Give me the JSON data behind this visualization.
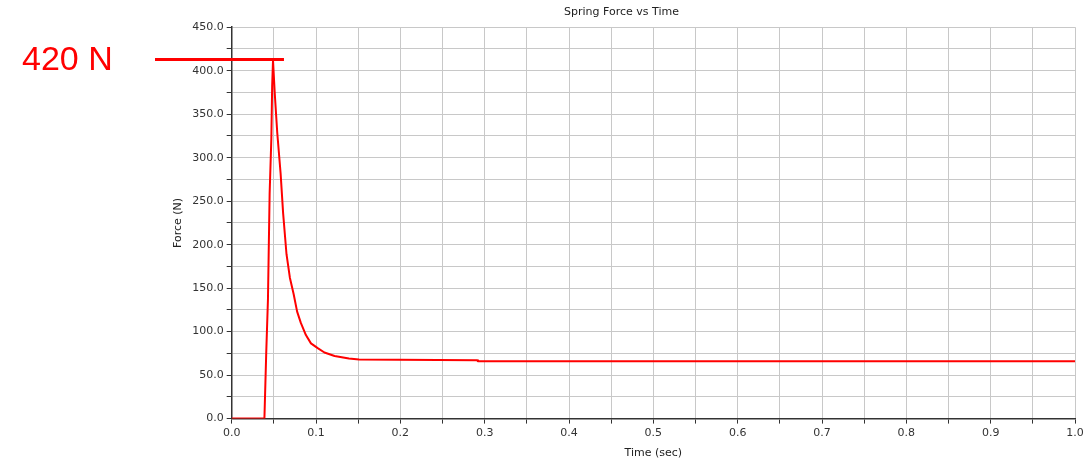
{
  "chart_data": {
    "type": "line",
    "title": "Spring Force vs Time",
    "xlabel": "Time (sec)",
    "ylabel": "Force (N)",
    "x": [
      0,
      0.0388,
      0.041,
      0.043,
      0.045,
      0.047,
      0.048,
      0.049,
      0.051,
      0.054,
      0.058,
      0.061,
      0.065,
      0.069,
      0.0735,
      0.0776,
      0.082,
      0.088,
      0.094,
      0.102,
      0.11,
      0.122,
      0.139,
      0.151,
      0.291,
      0.292,
      1.0
    ],
    "series": [
      {
        "color": "#ff0000",
        "values": [
          0,
          0,
          77,
          137,
          259,
          321,
          383,
          412,
          375,
          329,
          282,
          236,
          189,
          162,
          143,
          123,
          110,
          96,
          86.5,
          81,
          76,
          72,
          69,
          68,
          67,
          66,
          66
        ]
      }
    ],
    "xlim": [
      0,
      1
    ],
    "ylim": [
      0,
      450
    ],
    "xticks": [
      {
        "value": 0,
        "label": "0.0"
      },
      {
        "value": 0.05,
        "label": null
      },
      {
        "value": 0.1,
        "label": "0.1"
      },
      {
        "value": 0.15,
        "label": null
      },
      {
        "value": 0.2,
        "label": "0.2"
      },
      {
        "value": 0.25,
        "label": null
      },
      {
        "value": 0.3,
        "label": "0.3"
      },
      {
        "value": 0.35,
        "label": null
      },
      {
        "value": 0.4,
        "label": "0.4"
      },
      {
        "value": 0.45,
        "label": null
      },
      {
        "value": 0.5,
        "label": "0.5"
      },
      {
        "value": 0.55,
        "label": null
      },
      {
        "value": 0.6,
        "label": "0.6"
      },
      {
        "value": 0.65,
        "label": null
      },
      {
        "value": 0.7,
        "label": "0.7"
      },
      {
        "value": 0.75,
        "label": null
      },
      {
        "value": 0.8,
        "label": "0.8"
      },
      {
        "value": 0.85,
        "label": null
      },
      {
        "value": 0.9,
        "label": "0.9"
      },
      {
        "value": 0.95,
        "label": null
      },
      {
        "value": 1,
        "label": "1.0"
      }
    ],
    "yticks": [
      {
        "value": 0,
        "label": "0.0"
      },
      {
        "value": 25,
        "label": null
      },
      {
        "value": 50,
        "label": "50.0"
      },
      {
        "value": 75,
        "label": null
      },
      {
        "value": 100,
        "label": "100.0"
      },
      {
        "value": 125,
        "label": null
      },
      {
        "value": 150,
        "label": "150.0"
      },
      {
        "value": 175,
        "label": null
      },
      {
        "value": 200,
        "label": "200.0"
      },
      {
        "value": 225,
        "label": null
      },
      {
        "value": 250,
        "label": "250.0"
      },
      {
        "value": 275,
        "label": null
      },
      {
        "value": 300,
        "label": "300.0"
      },
      {
        "value": 325,
        "label": null
      },
      {
        "value": 350,
        "label": "350.0"
      },
      {
        "value": 375,
        "label": null
      },
      {
        "value": 400,
        "label": "400.0"
      },
      {
        "value": 425,
        "label": null
      },
      {
        "value": 450,
        "label": "450.0"
      }
    ],
    "ref_lines": [
      {
        "axis": "y",
        "value": 413,
        "label": "420 N",
        "color": "#ff0000"
      }
    ],
    "grid": true,
    "legend": false,
    "marker": "none",
    "line_style": "solid"
  }
}
